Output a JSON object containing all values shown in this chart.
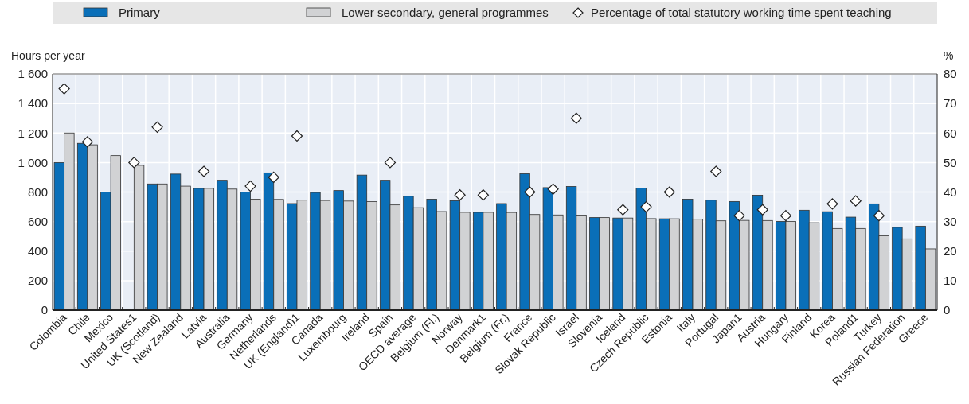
{
  "chart_data": {
    "type": "bar",
    "ylabel": "Hours per year",
    "y2label": "%",
    "categories": [
      "Colombia",
      "Chile",
      "Mexico",
      "United States1",
      "UK (Scotland)",
      "New Zealand",
      "Latvia",
      "Australia",
      "Germany",
      "Netherlands",
      "UK (England)1",
      "Canada",
      "Luxembourg",
      "Ireland",
      "Spain",
      "OECD average",
      "Belgium (Fl.)",
      "Norway",
      "Denmark1",
      "Belgium (Fr.)",
      "France",
      "Slovak Republic",
      "Israel",
      "Slovenia",
      "Iceland",
      "Czech Republic",
      "Estonia",
      "Italy",
      "Portugal",
      "Japan1",
      "Austria",
      "Hungary",
      "Finland",
      "Korea",
      "Poland1",
      "Turkey",
      "Russian Federation",
      "Greece"
    ],
    "series": [
      {
        "name": "Primary",
        "color": "#0a6fb8",
        "values": [
          1000,
          1130,
          800,
          null,
          855,
          922,
          825,
          880,
          800,
          930,
          722,
          797,
          810,
          915,
          880,
          772,
          752,
          741,
          663,
          722,
          924,
          830,
          838,
          627,
          624,
          827,
          619,
          752,
          745,
          736,
          779,
          601,
          677,
          667,
          630,
          720,
          561,
          569
        ]
      },
      {
        "name": "Lower secondary, general programmes",
        "color": "#d1d2d4",
        "values": [
          1200,
          1120,
          1047,
          981,
          855,
          840,
          825,
          820,
          752,
          750,
          745,
          743,
          739,
          735,
          713,
          694,
          668,
          663,
          663,
          662,
          648,
          645,
          644,
          627,
          624,
          620,
          619,
          616,
          605,
          608,
          607,
          601,
          592,
          553,
          553,
          504,
          483,
          415
        ]
      },
      {
        "name": "Percentage of total statutory working time spent teaching",
        "type": "scatter",
        "axis": "y2",
        "marker": "diamond",
        "color": "#ffffff",
        "values": [
          75,
          57,
          null,
          50,
          62,
          null,
          47,
          null,
          42,
          45,
          59,
          null,
          null,
          null,
          50,
          null,
          null,
          39,
          39,
          null,
          40,
          41,
          65,
          null,
          34,
          35,
          40,
          null,
          47,
          32,
          34,
          32,
          null,
          36,
          37,
          32,
          null,
          null
        ]
      }
    ],
    "ylim": [
      0,
      1600
    ],
    "yticks": [
      0,
      200,
      400,
      600,
      800,
      {
        "value": 1000,
        "label": "1 000"
      },
      {
        "value": 1200,
        "label": "1 200"
      },
      {
        "value": 1400,
        "label": "1 400"
      },
      {
        "value": 1600,
        "label": "1 600"
      }
    ],
    "y2lim": [
      0,
      80
    ],
    "y2ticks": [
      0,
      10,
      20,
      30,
      40,
      50,
      60,
      70,
      80
    ],
    "grid": true,
    "legend": "top"
  }
}
